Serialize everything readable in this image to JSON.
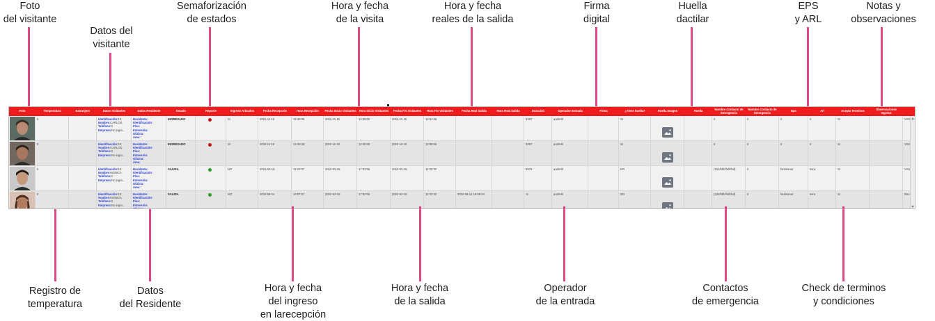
{
  "callouts_top": {
    "foto": [
      "Foto",
      "del visitante"
    ],
    "datos_visitante": [
      "Datos del",
      "visitante"
    ],
    "semaforizacion": [
      "Semaforización",
      "de estados"
    ],
    "hora_visita": [
      "Hora y fecha",
      "de la visita"
    ],
    "hora_reales": [
      "Hora y fecha",
      "reales de la salida"
    ],
    "firma": [
      "Firma",
      "digital"
    ],
    "huella": [
      "Huella",
      "dactilar"
    ],
    "eps": [
      "EPS",
      "y ARL"
    ],
    "notas": [
      "Notas y",
      "observaciones"
    ]
  },
  "callouts_bottom": {
    "temperatura": [
      "Registro de",
      "temperatura"
    ],
    "residente": [
      "Datos",
      "del Residente"
    ],
    "ingreso": [
      "Hora y fecha",
      "del ingreso",
      "en larecepción"
    ],
    "salida": [
      "Hora y fecha",
      "de la salida"
    ],
    "operador": [
      "Operador",
      "de la entrada"
    ],
    "emergencia": [
      "Contactos",
      "de emergencia"
    ],
    "terminos": [
      "Check de terminos",
      "y condiciones"
    ]
  },
  "table": {
    "headers": [
      "Foto",
      "Temperatura",
      "Extranjero",
      "Datos Visitantes",
      "Datos Residente",
      "Estado",
      "Reporte",
      "Ingreso Articulos",
      "Fecha Recepción",
      "Hora Recepción",
      "Fecha Inicio Visitantes",
      "Hora Inicio Visitantes",
      "Fecha Fin Visitantes",
      "Hora Fin Visitantes",
      "Fecha Real Salida",
      "Hora Real Salida",
      "Duración",
      "Operador Entrada",
      "Firma",
      "¿Tiene huella?",
      "Huella Imagen",
      "Huella",
      "Nombre Contacto de Emergencia",
      "Nombre Contacto de Emergencia",
      "Eps",
      "Arl",
      "Acepta Terminos",
      "Observaciones Ingreso",
      "Tipo"
    ],
    "visitor_labels": {
      "id": "Identificación:",
      "name": "Nombre:",
      "phone": "Teléfono:",
      "company": "Empresa:"
    },
    "resident_labels": [
      "Residente:",
      "Identificación:",
      "Piso:",
      "Extensión:",
      "Oficina:",
      "Área:"
    ],
    "rows": [
      {
        "temperatura": "0",
        "visitor_id": "10.",
        "visitor_name": "CARLOS",
        "visitor_phone": "0",
        "visitor_company": "No ingre...",
        "estado": "INGRESADO",
        "reporte_color": "#c0161b",
        "ingreso_articulos": "SI",
        "fecha_recepcion": "2022-11-10",
        "hora_recepcion": "12:39:36",
        "fecha_inicio": "2022-11-10",
        "hora_inicio": "12:39:00",
        "fecha_fin": "2022-11-10",
        "hora_fin": "12:54:06",
        "fecha_real_salida": "",
        "hora_real_salida": "",
        "duracion": "3287",
        "operador": "andresf",
        "firma": "",
        "tiene_huella": "SI",
        "huella_imagen": true,
        "contacto1": "0",
        "contacto2": "0",
        "eps": "0",
        "arl": "0",
        "acepta": "SI",
        "observaciones": "",
        "tipo": "VISITANTE"
      },
      {
        "temperatura": "0",
        "visitor_id": "10.",
        "visitor_name": "CARLOS",
        "visitor_phone": "0",
        "visitor_company": "No ingre...",
        "estado": "INGRESADO",
        "reporte_color": "#c0161b",
        "ingreso_articulos": "SI",
        "fecha_recepcion": "2022-11-10",
        "hora_recepcion": "12:40:45",
        "fecha_inicio": "2022-11-10",
        "hora_inicio": "12:40:05",
        "fecha_fin": "2022-11-10",
        "hora_fin": "12:55:06",
        "fecha_real_salida": "",
        "hora_real_salida": "",
        "duracion": "3287",
        "operador": "andresf",
        "firma": "",
        "tiene_huella": "SI",
        "huella_imagen": true,
        "contacto1": "0",
        "contacto2": "0",
        "eps": "0",
        "arl": "0",
        "acepta": "SI",
        "observaciones": "",
        "tipo": "VISITANTE"
      },
      {
        "temperatura": "0",
        "visitor_id": "10.",
        "visitor_name": "MONICA",
        "visitor_phone": "0",
        "visitor_company": "No ingre...",
        "estado": "SALIDA",
        "reporte_color": "#2e9a2a",
        "ingreso_articulos": "NO",
        "fecha_recepcion": "2022-03-18",
        "hora_recepcion": "11:22:37",
        "fecha_inicio": "2022-03-18",
        "hora_inicio": "17:32:06",
        "fecha_fin": "2022-03-18",
        "hora_fin": "11:32:32",
        "fecha_real_salida": "",
        "hora_real_salida": "",
        "duracion": "8976",
        "operador": "andresf",
        "firma": "",
        "tiene_huella": "NO",
        "huella_imagen": true,
        "contacto1": "(224/bbb/fulbfsd)",
        "contacto2": "0",
        "eps": "famisanar",
        "arl": "sura",
        "acepta": "SI",
        "observaciones": "",
        "tipo": "VISITANTE"
      },
      {
        "temperatura": "0",
        "visitor_id": "10.",
        "visitor_name": "MONICA",
        "visitor_phone": "0",
        "visitor_company": "No ingre...",
        "estado": "SALIDA",
        "reporte_color": "#2e9a2a",
        "ingreso_articulos": "NO",
        "fecha_recepcion": "2022-09-14",
        "hora_recepcion": "16:07:07",
        "fecha_inicio": "2022-03-18",
        "hora_inicio": "17:32:06",
        "fecha_fin": "2022-03-18",
        "hora_fin": "11:32:32",
        "fecha_real_salida": "2022-09-14 16:08:24",
        "hora_real_salida": "",
        "duracion": "-5",
        "operador": "andresf",
        "firma": "",
        "tiene_huella": "NO",
        "huella_imagen": true,
        "contacto1": "(224/bbb/fulbfsd)",
        "contacto2": "0",
        "eps": "famisanar",
        "arl": "sura",
        "acepta": "SI",
        "observaciones": "",
        "tipo": "Recepción"
      }
    ]
  },
  "colors": {
    "header_red": "#ee1c1c",
    "callout_line": "#e0488a",
    "link_blue": "#2a3fd2"
  }
}
